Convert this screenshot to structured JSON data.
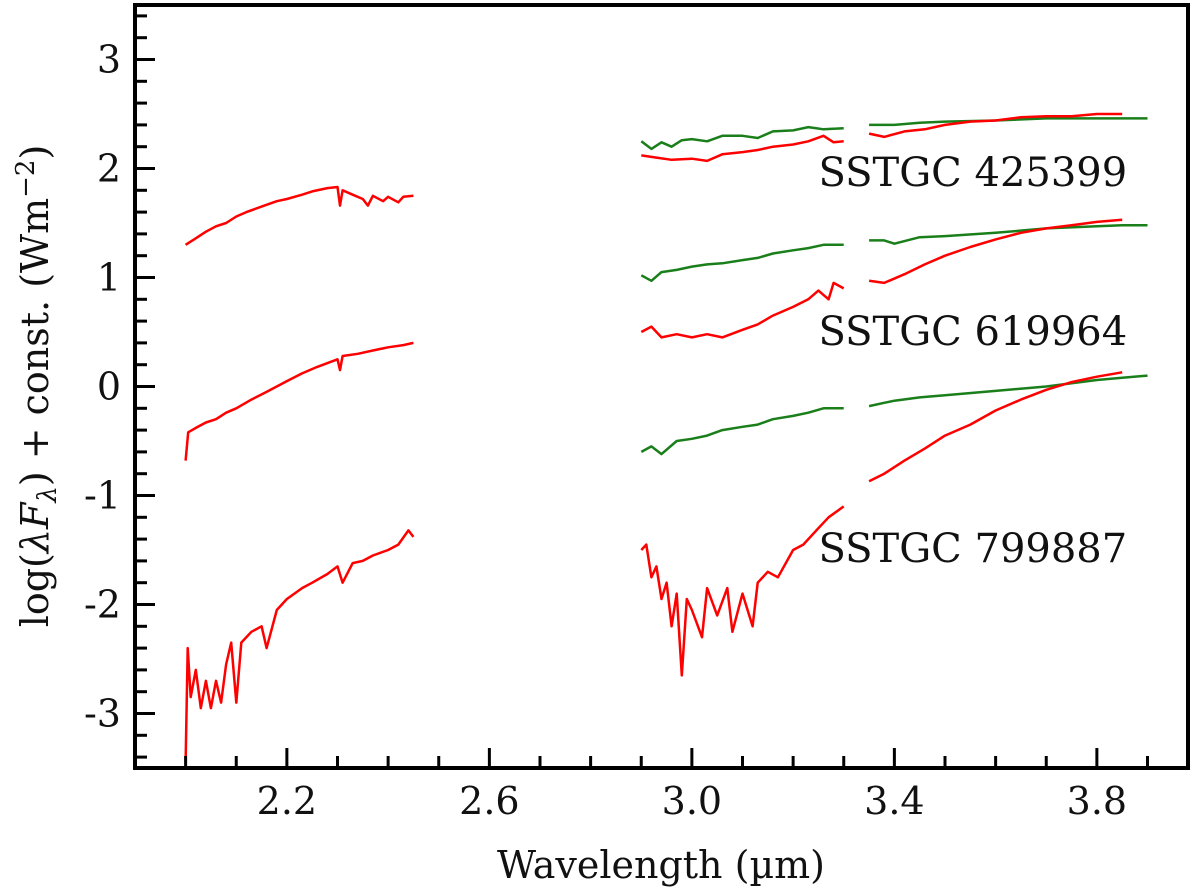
{
  "chart_data": {
    "type": "line",
    "xlabel": "Wavelength (µm)",
    "ylabel": "log(λF_λ) + const. (Wm^-2)",
    "xlim": [
      1.9,
      3.98
    ],
    "ylim": [
      -3.5,
      3.5
    ],
    "xticks": [
      2.2,
      2.6,
      3.0,
      3.4,
      3.8
    ],
    "xtick_labels": [
      "2.2",
      "2.6",
      "3.0",
      "3.4",
      "3.8"
    ],
    "yticks": [
      3,
      2,
      1,
      0,
      -1,
      -2,
      -3
    ],
    "ytick_labels": [
      "3",
      "2",
      "1",
      "0",
      "-1",
      "-2",
      "-3"
    ],
    "grid": false,
    "colors": {
      "observed": "#ff0000",
      "model": "#1a7f1a"
    },
    "stars": [
      {
        "label": "SSTGC 425399",
        "label_pos": [
          3.25,
          1.97
        ],
        "red": [
          [
            [
              2.0,
              1.3
            ],
            [
              2.02,
              1.36
            ],
            [
              2.04,
              1.42
            ],
            [
              2.06,
              1.47
            ],
            [
              2.08,
              1.5
            ],
            [
              2.1,
              1.56
            ],
            [
              2.12,
              1.6
            ],
            [
              2.15,
              1.65
            ],
            [
              2.18,
              1.7
            ],
            [
              2.2,
              1.72
            ],
            [
              2.23,
              1.76
            ],
            [
              2.25,
              1.79
            ],
            [
              2.28,
              1.82
            ],
            [
              2.3,
              1.83
            ],
            [
              2.305,
              1.66
            ],
            [
              2.31,
              1.8
            ],
            [
              2.33,
              1.76
            ],
            [
              2.35,
              1.72
            ],
            [
              2.36,
              1.66
            ],
            [
              2.37,
              1.75
            ],
            [
              2.39,
              1.7
            ],
            [
              2.4,
              1.74
            ],
            [
              2.42,
              1.69
            ],
            [
              2.43,
              1.74
            ],
            [
              2.45,
              1.75
            ]
          ],
          [
            [
              2.9,
              2.12
            ],
            [
              2.93,
              2.1
            ],
            [
              2.96,
              2.08
            ],
            [
              3.0,
              2.09
            ],
            [
              3.03,
              2.07
            ],
            [
              3.06,
              2.13
            ],
            [
              3.1,
              2.15
            ],
            [
              3.13,
              2.17
            ],
            [
              3.16,
              2.2
            ],
            [
              3.2,
              2.22
            ],
            [
              3.23,
              2.25
            ],
            [
              3.26,
              2.3
            ],
            [
              3.28,
              2.24
            ],
            [
              3.3,
              2.25
            ]
          ],
          [
            [
              3.35,
              2.32
            ],
            [
              3.38,
              2.29
            ],
            [
              3.42,
              2.34
            ],
            [
              3.46,
              2.36
            ],
            [
              3.5,
              2.4
            ],
            [
              3.55,
              2.43
            ],
            [
              3.6,
              2.44
            ],
            [
              3.65,
              2.47
            ],
            [
              3.7,
              2.48
            ],
            [
              3.75,
              2.48
            ],
            [
              3.8,
              2.5
            ],
            [
              3.85,
              2.5
            ]
          ]
        ],
        "green": [
          [
            [
              2.9,
              2.25
            ],
            [
              2.92,
              2.18
            ],
            [
              2.94,
              2.24
            ],
            [
              2.96,
              2.2
            ],
            [
              2.98,
              2.26
            ],
            [
              3.0,
              2.27
            ],
            [
              3.03,
              2.25
            ],
            [
              3.06,
              2.3
            ],
            [
              3.1,
              2.3
            ],
            [
              3.13,
              2.28
            ],
            [
              3.16,
              2.34
            ],
            [
              3.2,
              2.35
            ],
            [
              3.23,
              2.38
            ],
            [
              3.26,
              2.36
            ],
            [
              3.3,
              2.37
            ]
          ],
          [
            [
              3.35,
              2.4
            ],
            [
              3.4,
              2.4
            ],
            [
              3.45,
              2.42
            ],
            [
              3.5,
              2.43
            ],
            [
              3.6,
              2.44
            ],
            [
              3.7,
              2.46
            ],
            [
              3.8,
              2.46
            ],
            [
              3.9,
              2.46
            ]
          ]
        ]
      },
      {
        "label": "SSTGC 619964",
        "label_pos": [
          3.25,
          0.51
        ],
        "red": [
          [
            [
              2.0,
              -0.68
            ],
            [
              2.005,
              -0.42
            ],
            [
              2.02,
              -0.38
            ],
            [
              2.04,
              -0.33
            ],
            [
              2.06,
              -0.3
            ],
            [
              2.08,
              -0.24
            ],
            [
              2.1,
              -0.2
            ],
            [
              2.13,
              -0.12
            ],
            [
              2.16,
              -0.05
            ],
            [
              2.2,
              0.05
            ],
            [
              2.23,
              0.12
            ],
            [
              2.26,
              0.18
            ],
            [
              2.3,
              0.25
            ],
            [
              2.305,
              0.15
            ],
            [
              2.31,
              0.28
            ],
            [
              2.34,
              0.3
            ],
            [
              2.37,
              0.33
            ],
            [
              2.4,
              0.36
            ],
            [
              2.43,
              0.38
            ],
            [
              2.45,
              0.4
            ]
          ],
          [
            [
              2.9,
              0.5
            ],
            [
              2.92,
              0.55
            ],
            [
              2.94,
              0.45
            ],
            [
              2.97,
              0.48
            ],
            [
              3.0,
              0.45
            ],
            [
              3.03,
              0.48
            ],
            [
              3.06,
              0.45
            ],
            [
              3.1,
              0.52
            ],
            [
              3.13,
              0.57
            ],
            [
              3.16,
              0.65
            ],
            [
              3.2,
              0.73
            ],
            [
              3.23,
              0.8
            ],
            [
              3.25,
              0.88
            ],
            [
              3.27,
              0.8
            ],
            [
              3.28,
              0.95
            ],
            [
              3.3,
              0.9
            ]
          ],
          [
            [
              3.35,
              0.97
            ],
            [
              3.38,
              0.95
            ],
            [
              3.42,
              1.03
            ],
            [
              3.46,
              1.12
            ],
            [
              3.5,
              1.2
            ],
            [
              3.55,
              1.28
            ],
            [
              3.6,
              1.35
            ],
            [
              3.65,
              1.41
            ],
            [
              3.7,
              1.45
            ],
            [
              3.75,
              1.48
            ],
            [
              3.8,
              1.51
            ],
            [
              3.85,
              1.53
            ]
          ]
        ],
        "green": [
          [
            [
              2.9,
              1.02
            ],
            [
              2.92,
              0.97
            ],
            [
              2.94,
              1.05
            ],
            [
              2.97,
              1.07
            ],
            [
              3.0,
              1.1
            ],
            [
              3.03,
              1.12
            ],
            [
              3.06,
              1.13
            ],
            [
              3.1,
              1.16
            ],
            [
              3.13,
              1.18
            ],
            [
              3.16,
              1.22
            ],
            [
              3.2,
              1.25
            ],
            [
              3.23,
              1.27
            ],
            [
              3.26,
              1.3
            ],
            [
              3.3,
              1.3
            ]
          ],
          [
            [
              3.35,
              1.34
            ],
            [
              3.38,
              1.34
            ],
            [
              3.4,
              1.31
            ],
            [
              3.45,
              1.37
            ],
            [
              3.5,
              1.38
            ],
            [
              3.6,
              1.41
            ],
            [
              3.7,
              1.45
            ],
            [
              3.8,
              1.47
            ],
            [
              3.85,
              1.48
            ],
            [
              3.9,
              1.48
            ]
          ]
        ]
      },
      {
        "label": "SSTGC 799887",
        "label_pos": [
          3.25,
          -1.48
        ],
        "red": [
          [
            [
              2.0,
              -3.45
            ],
            [
              2.004,
              -2.4
            ],
            [
              2.01,
              -2.85
            ],
            [
              2.02,
              -2.6
            ],
            [
              2.03,
              -2.95
            ],
            [
              2.04,
              -2.7
            ],
            [
              2.05,
              -2.95
            ],
            [
              2.06,
              -2.7
            ],
            [
              2.07,
              -2.9
            ],
            [
              2.08,
              -2.55
            ],
            [
              2.09,
              -2.35
            ],
            [
              2.1,
              -2.9
            ],
            [
              2.11,
              -2.35
            ],
            [
              2.13,
              -2.25
            ],
            [
              2.15,
              -2.2
            ],
            [
              2.16,
              -2.4
            ],
            [
              2.18,
              -2.05
            ],
            [
              2.2,
              -1.95
            ],
            [
              2.23,
              -1.85
            ],
            [
              2.25,
              -1.8
            ],
            [
              2.28,
              -1.72
            ],
            [
              2.3,
              -1.65
            ],
            [
              2.31,
              -1.8
            ],
            [
              2.33,
              -1.62
            ],
            [
              2.35,
              -1.6
            ],
            [
              2.37,
              -1.55
            ],
            [
              2.4,
              -1.5
            ],
            [
              2.42,
              -1.45
            ],
            [
              2.44,
              -1.32
            ],
            [
              2.45,
              -1.38
            ]
          ],
          [
            [
              2.9,
              -1.5
            ],
            [
              2.91,
              -1.45
            ],
            [
              2.92,
              -1.75
            ],
            [
              2.93,
              -1.65
            ],
            [
              2.94,
              -1.95
            ],
            [
              2.95,
              -1.8
            ],
            [
              2.96,
              -2.2
            ],
            [
              2.97,
              -1.9
            ],
            [
              2.98,
              -2.65
            ],
            [
              2.99,
              -1.95
            ],
            [
              3.0,
              -2.05
            ],
            [
              3.02,
              -2.3
            ],
            [
              3.03,
              -1.85
            ],
            [
              3.05,
              -2.1
            ],
            [
              3.07,
              -1.85
            ],
            [
              3.08,
              -2.25
            ],
            [
              3.1,
              -1.9
            ],
            [
              3.12,
              -2.2
            ],
            [
              3.13,
              -1.8
            ],
            [
              3.15,
              -1.7
            ],
            [
              3.17,
              -1.75
            ],
            [
              3.2,
              -1.5
            ],
            [
              3.22,
              -1.45
            ],
            [
              3.25,
              -1.3
            ],
            [
              3.27,
              -1.2
            ],
            [
              3.3,
              -1.1
            ]
          ],
          [
            [
              3.35,
              -0.87
            ],
            [
              3.38,
              -0.8
            ],
            [
              3.42,
              -0.68
            ],
            [
              3.46,
              -0.57
            ],
            [
              3.5,
              -0.45
            ],
            [
              3.55,
              -0.35
            ],
            [
              3.6,
              -0.22
            ],
            [
              3.65,
              -0.12
            ],
            [
              3.7,
              -0.03
            ],
            [
              3.75,
              0.04
            ],
            [
              3.8,
              0.09
            ],
            [
              3.85,
              0.13
            ]
          ]
        ],
        "green": [
          [
            [
              2.9,
              -0.6
            ],
            [
              2.92,
              -0.55
            ],
            [
              2.94,
              -0.62
            ],
            [
              2.97,
              -0.5
            ],
            [
              3.0,
              -0.48
            ],
            [
              3.03,
              -0.45
            ],
            [
              3.06,
              -0.4
            ],
            [
              3.1,
              -0.37
            ],
            [
              3.13,
              -0.35
            ],
            [
              3.16,
              -0.3
            ],
            [
              3.2,
              -0.27
            ],
            [
              3.23,
              -0.24
            ],
            [
              3.26,
              -0.2
            ],
            [
              3.3,
              -0.2
            ]
          ],
          [
            [
              3.35,
              -0.18
            ],
            [
              3.38,
              -0.15
            ],
            [
              3.4,
              -0.13
            ],
            [
              3.45,
              -0.1
            ],
            [
              3.5,
              -0.08
            ],
            [
              3.6,
              -0.04
            ],
            [
              3.7,
              0.0
            ],
            [
              3.8,
              0.06
            ],
            [
              3.85,
              0.08
            ],
            [
              3.9,
              0.1
            ]
          ]
        ]
      }
    ]
  }
}
